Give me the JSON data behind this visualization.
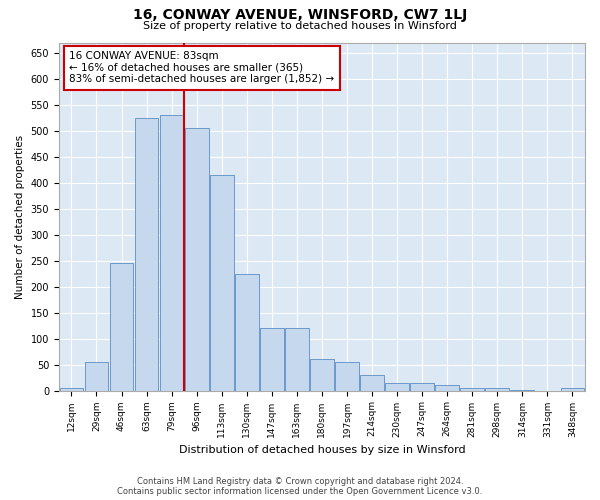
{
  "title": "16, CONWAY AVENUE, WINSFORD, CW7 1LJ",
  "subtitle": "Size of property relative to detached houses in Winsford",
  "xlabel": "Distribution of detached houses by size in Winsford",
  "ylabel": "Number of detached properties",
  "property_label": "16 CONWAY AVENUE: 83sqm",
  "annotation_line1": "← 16% of detached houses are smaller (365)",
  "annotation_line2": "83% of semi-detached houses are larger (1,852) →",
  "categories": [
    "12sqm",
    "29sqm",
    "46sqm",
    "63sqm",
    "79sqm",
    "96sqm",
    "113sqm",
    "130sqm",
    "147sqm",
    "163sqm",
    "180sqm",
    "197sqm",
    "214sqm",
    "230sqm",
    "247sqm",
    "264sqm",
    "281sqm",
    "298sqm",
    "314sqm",
    "331sqm",
    "348sqm"
  ],
  "values": [
    5,
    55,
    245,
    525,
    530,
    505,
    415,
    225,
    120,
    120,
    60,
    55,
    30,
    15,
    15,
    10,
    5,
    5,
    2,
    0,
    5
  ],
  "bar_color": "#c5d8ed",
  "bar_edge_color": "#5b8ec4",
  "vline_color": "#cc0000",
  "vline_x_index": 4,
  "annotation_box_color": "#cc0000",
  "ylim": [
    0,
    670
  ],
  "yticks": [
    0,
    50,
    100,
    150,
    200,
    250,
    300,
    350,
    400,
    450,
    500,
    550,
    600,
    650
  ],
  "bg_color": "#dce9f5",
  "footer1": "Contains HM Land Registry data © Crown copyright and database right 2024.",
  "footer2": "Contains public sector information licensed under the Open Government Licence v3.0."
}
